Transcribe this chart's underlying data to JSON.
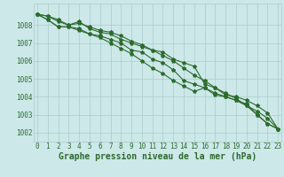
{
  "x": [
    0,
    1,
    2,
    3,
    4,
    5,
    6,
    7,
    8,
    9,
    10,
    11,
    12,
    13,
    14,
    15,
    16,
    17,
    18,
    19,
    20,
    21,
    22,
    23
  ],
  "series": [
    [
      1008.6,
      1008.5,
      1008.3,
      1008.0,
      1008.1,
      1007.9,
      1007.7,
      1007.6,
      1007.4,
      1007.1,
      1006.9,
      1006.6,
      1006.5,
      1006.1,
      1005.9,
      1005.7,
      1004.7,
      1004.5,
      1004.1,
      1004.0,
      1003.8,
      1003.5,
      1003.1,
      1002.2
    ],
    [
      1008.6,
      1008.5,
      1008.2,
      1008.0,
      1008.2,
      1007.8,
      1007.6,
      1007.5,
      1007.2,
      1007.0,
      1006.8,
      1006.6,
      1006.3,
      1006.0,
      1005.6,
      1005.2,
      1004.9,
      1004.5,
      1004.2,
      1003.9,
      1003.5,
      1003.2,
      1002.8,
      1002.2
    ],
    [
      1008.6,
      1008.3,
      1007.9,
      1007.9,
      1007.7,
      1007.5,
      1007.4,
      1007.2,
      1007.0,
      1006.6,
      1006.5,
      1006.1,
      1005.9,
      1005.5,
      1004.9,
      1004.7,
      1004.5,
      1004.2,
      1004.0,
      1003.8,
      1003.5,
      1003.0,
      1002.5,
      1002.2
    ],
    [
      1008.6,
      1008.3,
      1007.9,
      1007.9,
      1007.8,
      1007.5,
      1007.3,
      1007.0,
      1006.7,
      1006.4,
      1006.0,
      1005.6,
      1005.3,
      1004.9,
      1004.6,
      1004.3,
      1004.5,
      1004.1,
      1004.0,
      1003.8,
      1003.6,
      1003.0,
      1002.5,
      1002.2
    ]
  ],
  "line_color": "#2d6a2d",
  "marker": "*",
  "marker_size": 3,
  "bg_color": "#cce8e8",
  "grid_color": "#aacccc",
  "xlabel": "Graphe pression niveau de la mer (hPa)",
  "xlabel_fontsize": 7,
  "ylim": [
    1001.5,
    1009.2
  ],
  "xlim": [
    -0.3,
    23.3
  ],
  "yticks": [
    1002,
    1003,
    1004,
    1005,
    1006,
    1007,
    1008
  ],
  "xticks": [
    0,
    1,
    2,
    3,
    4,
    5,
    6,
    7,
    8,
    9,
    10,
    11,
    12,
    13,
    14,
    15,
    16,
    17,
    18,
    19,
    20,
    21,
    22,
    23
  ],
  "tick_fontsize": 5.5,
  "line_width": 0.8
}
